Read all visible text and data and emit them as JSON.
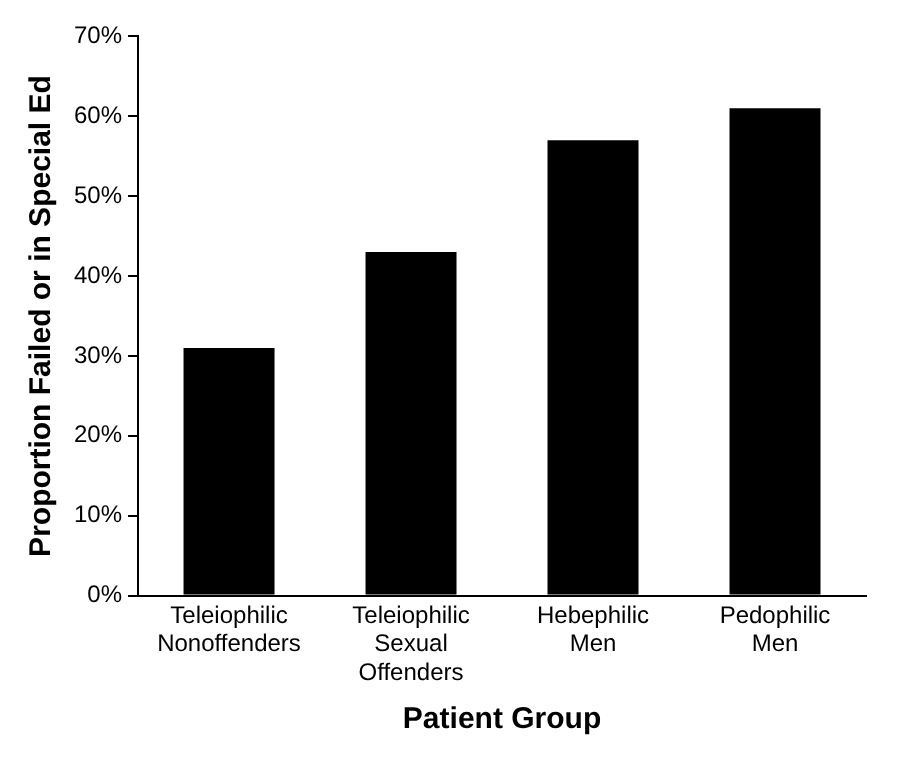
{
  "chart_data": {
    "type": "bar",
    "xlabel": "Patient Group",
    "ylabel": "Proportion Failed or in Special Ed",
    "categories": [
      "Teleiophilic Nonoffenders",
      "Teleiophilic Sexual Offenders",
      "Hebephilic Men",
      "Pedophilic Men"
    ],
    "values": [
      31,
      43,
      57,
      61
    ],
    "color": "#000000",
    "ylim": [
      0,
      70
    ],
    "yticks": [
      {
        "value": 0,
        "label": "0%"
      },
      {
        "value": 10,
        "label": "10%"
      },
      {
        "value": 20,
        "label": "20%"
      },
      {
        "value": 30,
        "label": "30%"
      },
      {
        "value": 40,
        "label": "40%"
      },
      {
        "value": 50,
        "label": "50%"
      },
      {
        "value": 60,
        "label": "60%"
      },
      {
        "value": 70,
        "label": "70%"
      }
    ],
    "grid": false,
    "legend": false
  }
}
